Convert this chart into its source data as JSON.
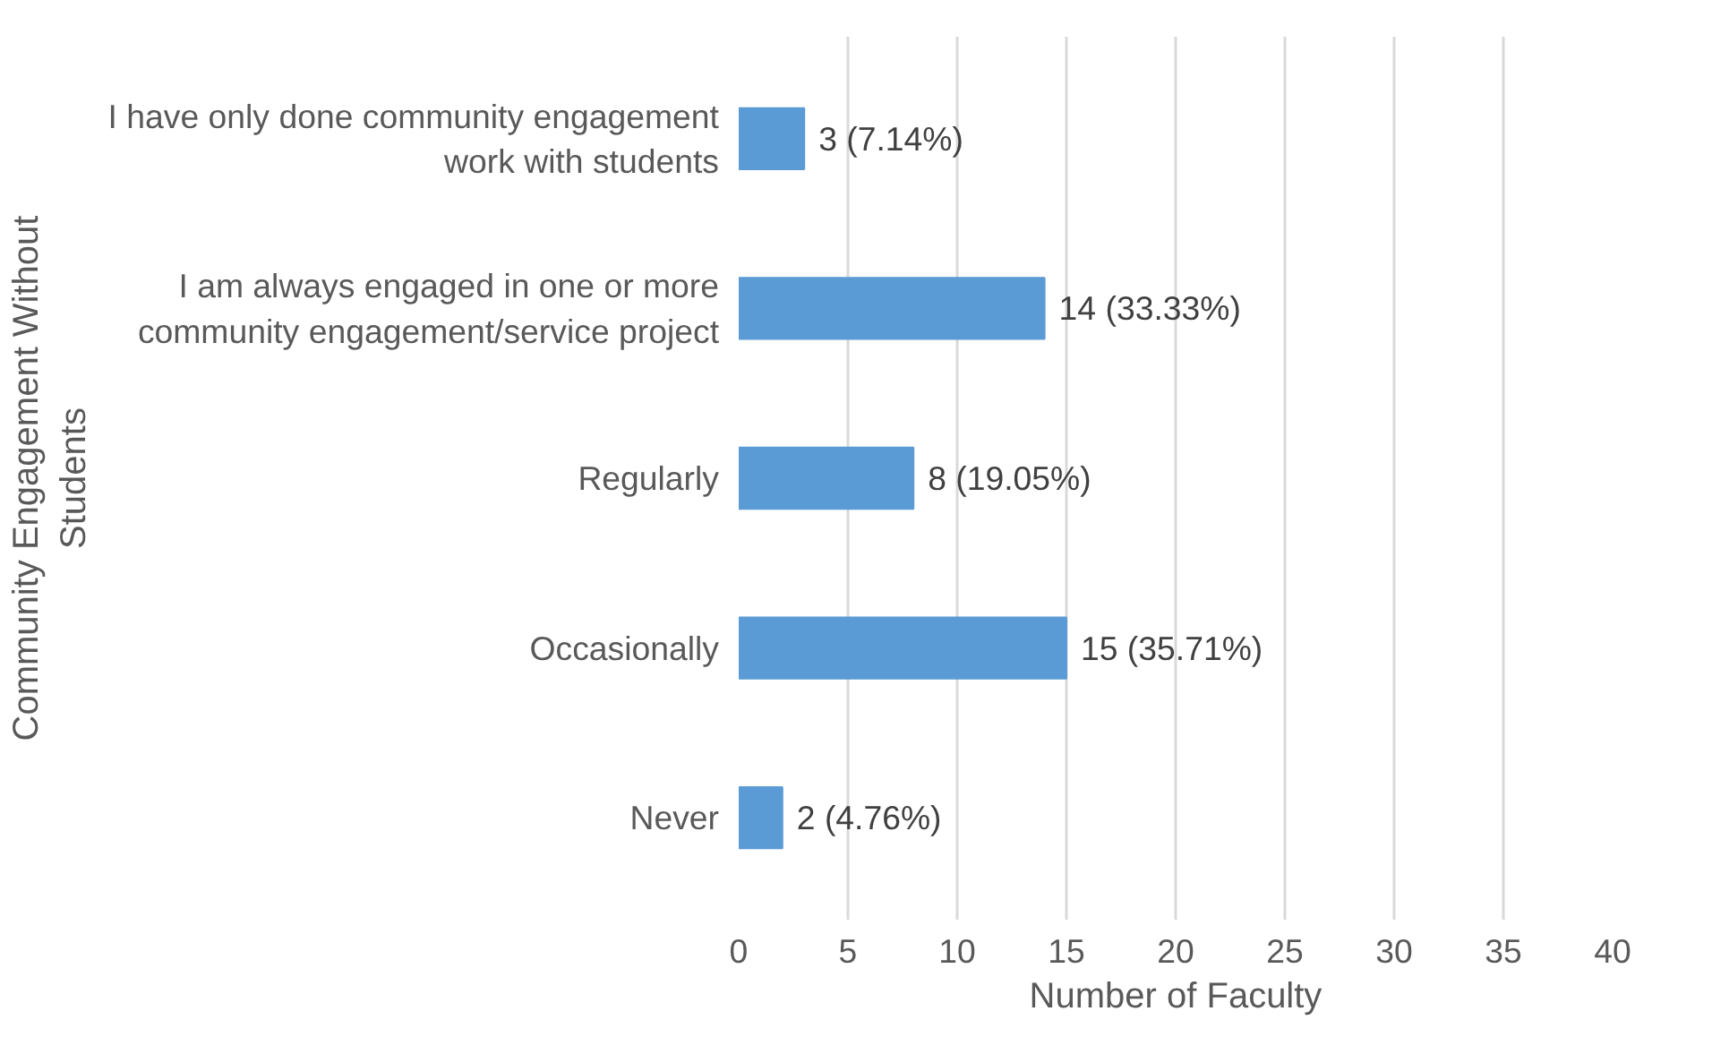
{
  "chart_data": {
    "type": "bar",
    "orientation": "horizontal",
    "xlabel": "Number of Faculty",
    "ylabel": "Community Engagement Without Students",
    "categories": [
      "I have only done community engagement work with students",
      "I am always engaged in one or more community engagement/service project",
      "Regularly",
      "Occasionally",
      "Never"
    ],
    "values": [
      3,
      14,
      8,
      15,
      2
    ],
    "color": "#5b9bd5",
    "value_labels": [
      "3 (7.14%)",
      "14 (33.33%)",
      "8 (19.05%)",
      "15 (35.71%)",
      "2 (4.76%)"
    ],
    "xlim": [
      0,
      40
    ],
    "xticks": [
      0,
      5,
      10,
      15,
      20,
      25,
      30,
      35,
      40
    ],
    "grid": "x"
  }
}
